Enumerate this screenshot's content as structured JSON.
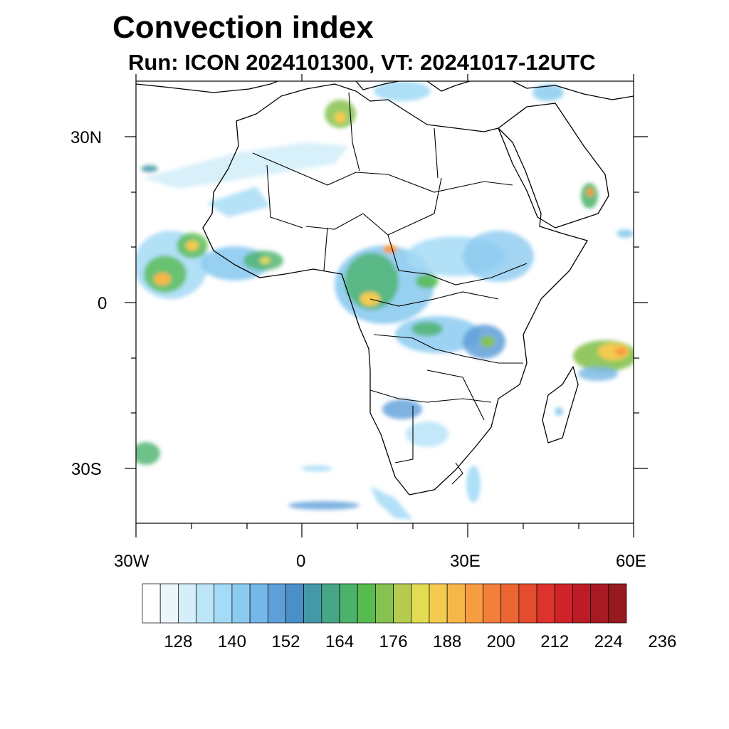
{
  "title": "Convection index",
  "subtitle": "Run: ICON 2024101300,  VT: 20241017-12UTC",
  "map": {
    "lon_range": [
      -30,
      60
    ],
    "lat_range": [
      -40,
      40
    ],
    "lat_tick_labels": [
      "30N",
      "0",
      "30S"
    ],
    "lon_tick_labels": [
      "30W",
      "0",
      "30E",
      "60E"
    ]
  },
  "colorbar": {
    "colors": [
      "#ffffff",
      "#eaf6fc",
      "#d4eefa",
      "#bde5f8",
      "#a4dbf6",
      "#8ccbf0",
      "#75b7e6",
      "#5f9fd9",
      "#4a8fc8",
      "#4598a8",
      "#47a686",
      "#4ab26a",
      "#57bb50",
      "#86c24f",
      "#b6cc50",
      "#e2dc52",
      "#f4cb4f",
      "#f6b74a",
      "#f69c41",
      "#f2803a",
      "#ec6634",
      "#e44b2f",
      "#dc332d",
      "#cf2329",
      "#bd1c27",
      "#a81a23",
      "#961a1e"
    ],
    "tick_labels": [
      "128",
      "140",
      "152",
      "164",
      "176",
      "188",
      "200",
      "212",
      "224",
      "236"
    ]
  }
}
